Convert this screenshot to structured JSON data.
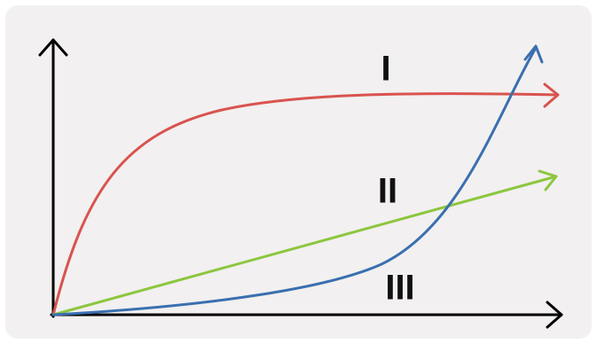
{
  "curves": [
    {
      "label": "I"
    },
    {
      "label": "II"
    },
    {
      "label": "III"
    }
  ]
}
